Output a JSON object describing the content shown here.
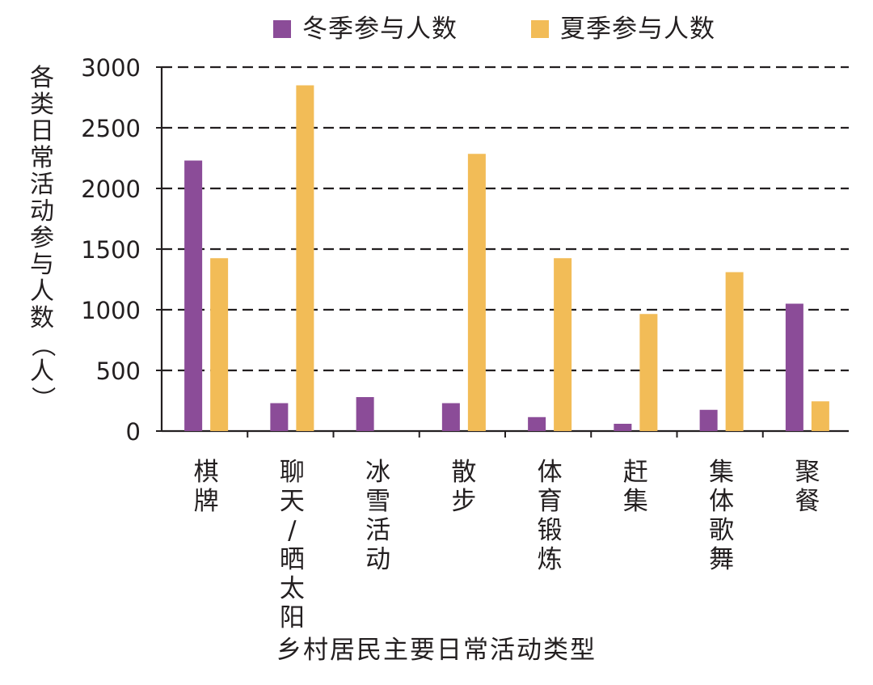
{
  "chart_data": {
    "type": "bar",
    "xlabel": "乡村居民主要日常活动类型",
    "ylabel": "各类日常活动参与人数（人）",
    "ylim": [
      0,
      3000
    ],
    "yticks": [
      0,
      500,
      1000,
      1500,
      2000,
      2500,
      3000
    ],
    "grid": "horizontal dashed",
    "legend_position": "top",
    "categories": [
      "棋牌",
      "聊天/晒太阳",
      "冰雪活动",
      "散步",
      "体育锻炼",
      "赶集",
      "集体歌舞",
      "聚餐"
    ],
    "series": [
      {
        "name": "冬季参与人数",
        "color": "#8b4c98",
        "values": [
          2230,
          230,
          280,
          230,
          115,
          60,
          175,
          1050
        ]
      },
      {
        "name": "夏季参与人数",
        "color": "#f2bc57",
        "values": [
          1425,
          2850,
          0,
          2285,
          1425,
          965,
          1310,
          245
        ]
      }
    ]
  }
}
